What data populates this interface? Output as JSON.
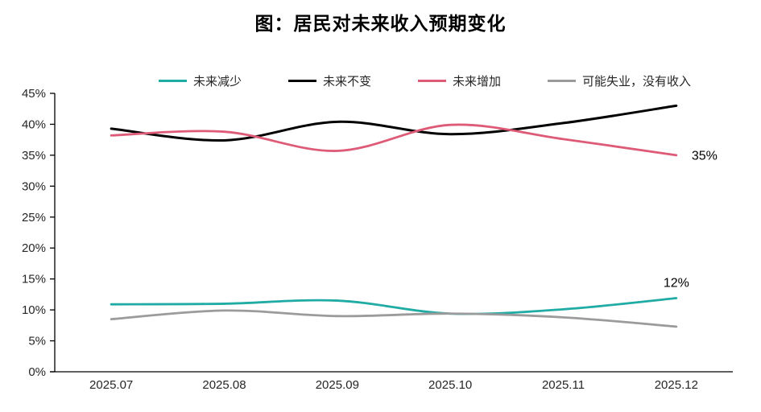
{
  "page": {
    "title": "图：居民对未来收入预期变化"
  },
  "chart_data": {
    "type": "line",
    "title": "图：居民对未来收入预期变化",
    "categories": [
      "2025.07",
      "2025.08",
      "2025.09",
      "2025.10",
      "2025.11",
      "2025.12"
    ],
    "series": [
      {
        "name": "未来减少",
        "slug": "future-decrease",
        "color": "#21ABA5",
        "values": [
          10.9,
          11.0,
          11.5,
          9.4,
          10.1,
          11.9
        ],
        "end_label": "12%",
        "end_label_position": "above"
      },
      {
        "name": "未来不变",
        "slug": "future-unchanged",
        "color": "#000000",
        "values": [
          39.3,
          37.4,
          40.4,
          38.4,
          40.2,
          43.0
        ],
        "end_label": "",
        "end_label_position": ""
      },
      {
        "name": "未来增加",
        "slug": "future-increase",
        "color": "#DE5B77",
        "values": [
          38.2,
          38.8,
          35.7,
          39.9,
          37.6,
          35.0
        ],
        "end_label": "35%",
        "end_label_position": "right"
      },
      {
        "name": "可能失业，没有收入",
        "slug": "possible-unemployment-no-income",
        "color": "#9B9B9B",
        "values": [
          8.5,
          9.9,
          9.0,
          9.4,
          8.8,
          7.3
        ],
        "end_label": "",
        "end_label_position": ""
      }
    ],
    "xlabel": "",
    "ylabel": "",
    "ylim": [
      0,
      45
    ],
    "y_tick_step": 5,
    "y_tick_labels": [
      "0%",
      "5%",
      "10%",
      "15%",
      "20%",
      "25%",
      "30%",
      "35%",
      "40%",
      "45%"
    ],
    "grid": false,
    "legend_position": "top",
    "axis_color": "#000000",
    "tick_label_color": "#262626",
    "annotation_color": "#000000"
  }
}
